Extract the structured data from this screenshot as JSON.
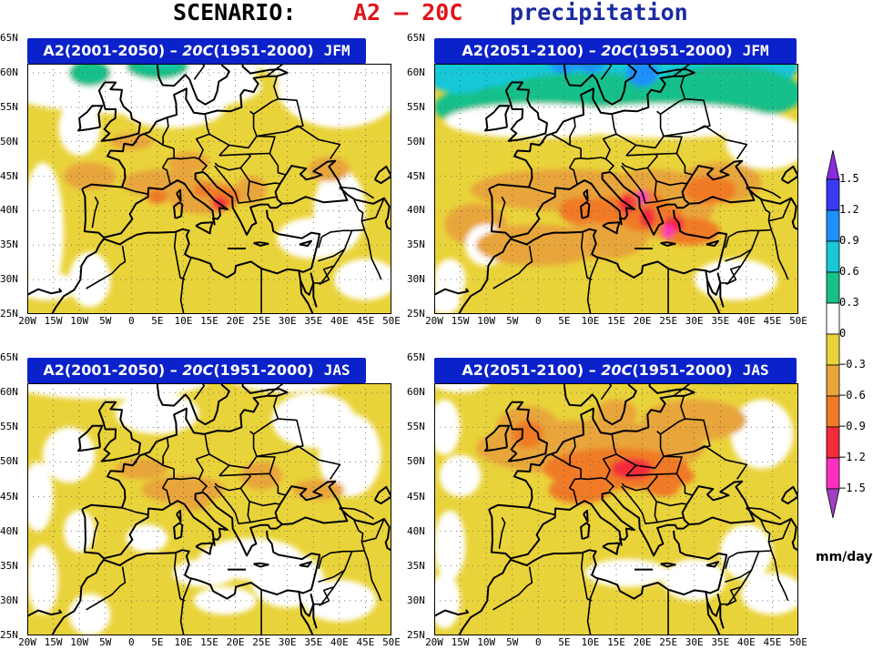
{
  "title": {
    "prefix": "SCENARIO:",
    "scenario": "A2 – 20C",
    "variable": "precipitation",
    "colors": {
      "prefix": "#000000",
      "scenario": "#e0151b",
      "variable": "#1a2aa3"
    }
  },
  "panels": [
    {
      "period": "A2(2001-2050)",
      "dash": " – ",
      "base": "20C",
      "base_period": "(1951-2000)",
      "season": "JFM"
    },
    {
      "period": "A2(2051-2100)",
      "dash": " – ",
      "base": "20C",
      "base_period": "(1951-2000)",
      "season": "JFM"
    },
    {
      "period": "A2(2001-2050)",
      "dash": " – ",
      "base": "20C",
      "base_period": "(1951-2000)",
      "season": "JAS"
    },
    {
      "period": "A2(2051-2100)",
      "dash": " – ",
      "base": "20C",
      "base_period": "(1951-2000)",
      "season": "JAS"
    }
  ],
  "lat_labels": [
    "65N",
    "60N",
    "55N",
    "50N",
    "45N",
    "40N",
    "35N",
    "30N",
    "25N"
  ],
  "lon_labels": [
    "20W",
    "15W",
    "10W",
    "5W",
    "0",
    "5E",
    "10E",
    "15E",
    "20E",
    "25E",
    "30E",
    "35E",
    "40E",
    "45E",
    "50E"
  ],
  "colorbar": {
    "labels": [
      "1.5",
      "1.2",
      "0.9",
      "0.6",
      "0.3",
      "0",
      "−0.3",
      "−0.6",
      "−0.9",
      "−1.2",
      "−1.5"
    ],
    "unit": "mm/day",
    "colors": [
      "#8a2be2",
      "#3a3af5",
      "#1e90ff",
      "#18c8d8",
      "#17c08a",
      "#ffffff",
      "#e9d33a",
      "#e8a53a",
      "#f07a28",
      "#f52a3a",
      "#ff30c0",
      "#a040c0"
    ]
  }
}
